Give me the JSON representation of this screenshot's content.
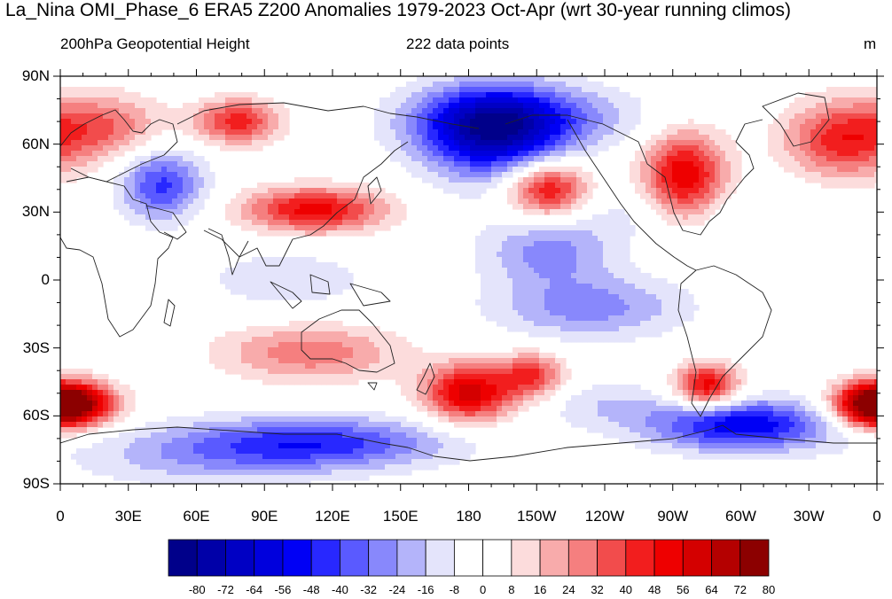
{
  "title": "La_Nina OMI_Phase_6 ERA5 Z200 Anomalies 1979-2023 Oct-Apr (wrt 30-year running climos)",
  "subtitle_left": "200hPa Geopotential Height",
  "subtitle_center": "222 data points",
  "units": "m",
  "lat_ticks": [
    {
      "label": "90N",
      "lat": 90
    },
    {
      "label": "60N",
      "lat": 60
    },
    {
      "label": "30N",
      "lat": 30
    },
    {
      "label": "0",
      "lat": 0
    },
    {
      "label": "30S",
      "lat": -30
    },
    {
      "label": "60S",
      "lat": -60
    },
    {
      "label": "90S",
      "lat": -90
    }
  ],
  "lon_ticks": [
    {
      "label": "0",
      "lon": 0
    },
    {
      "label": "30E",
      "lon": 30
    },
    {
      "label": "60E",
      "lon": 60
    },
    {
      "label": "90E",
      "lon": 90
    },
    {
      "label": "120E",
      "lon": 120
    },
    {
      "label": "150E",
      "lon": 150
    },
    {
      "label": "180",
      "lon": 180
    },
    {
      "label": "150W",
      "lon": 210
    },
    {
      "label": "120W",
      "lon": 240
    },
    {
      "label": "90W",
      "lon": 270
    },
    {
      "label": "60W",
      "lon": 300
    },
    {
      "label": "30W",
      "lon": 330
    },
    {
      "label": "0",
      "lon": 360
    }
  ],
  "colorbar": {
    "levels": [
      "-80",
      "-72",
      "-64",
      "-56",
      "-48",
      "-40",
      "-32",
      "-24",
      "-16",
      "-8",
      "0",
      "8",
      "16",
      "24",
      "32",
      "40",
      "48",
      "56",
      "64",
      "72",
      "80"
    ],
    "colors": [
      "#00008a",
      "#0000a8",
      "#0000c4",
      "#0000dd",
      "#0000f5",
      "#2828ff",
      "#5a5aff",
      "#8888fc",
      "#b4b4fa",
      "#e4e4fb",
      "#ffffff",
      "#ffffff",
      "#fcdcdc",
      "#f8abab",
      "#f57f7f",
      "#f24c4c",
      "#f21e1e",
      "#ee0000",
      "#d40000",
      "#b40000",
      "#8c0000"
    ]
  },
  "anomaly_centers": [
    {
      "lon": 190,
      "lat": 65,
      "amp": -66,
      "sx": 22,
      "sy": 14
    },
    {
      "lon": 205,
      "lat": 72,
      "amp": -30,
      "sx": 35,
      "sy": 10
    },
    {
      "lon": 215,
      "lat": 40,
      "amp": 55,
      "sx": 13,
      "sy": 9
    },
    {
      "lon": 275,
      "lat": 45,
      "amp": 58,
      "sx": 13,
      "sy": 14
    },
    {
      "lon": 345,
      "lat": 62,
      "amp": 44,
      "sx": 18,
      "sy": 12
    },
    {
      "lon": 20,
      "lat": 68,
      "amp": 30,
      "sx": 18,
      "sy": 10
    },
    {
      "lon": 78,
      "lat": 70,
      "amp": 44,
      "sx": 13,
      "sy": 7
    },
    {
      "lon": 45,
      "lat": 42,
      "amp": -42,
      "sx": 13,
      "sy": 11
    },
    {
      "lon": 112,
      "lat": 31,
      "amp": 52,
      "sx": 22,
      "sy": 7
    },
    {
      "lon": 260,
      "lat": 30,
      "amp": -12,
      "sx": 45,
      "sy": 10
    },
    {
      "lon": 215,
      "lat": 12,
      "amp": -26,
      "sx": 20,
      "sy": 10
    },
    {
      "lon": 233,
      "lat": -12,
      "amp": -28,
      "sx": 30,
      "sy": 10
    },
    {
      "lon": 100,
      "lat": 0,
      "amp": -14,
      "sx": 28,
      "sy": 10
    },
    {
      "lon": 110,
      "lat": -32,
      "amp": 30,
      "sx": 28,
      "sy": 9
    },
    {
      "lon": 180,
      "lat": -50,
      "amp": 60,
      "sx": 14,
      "sy": 9
    },
    {
      "lon": 208,
      "lat": -42,
      "amp": 40,
      "sx": 10,
      "sy": 7
    },
    {
      "lon": 285,
      "lat": -47,
      "amp": 55,
      "sx": 10,
      "sy": 7
    },
    {
      "lon": 5,
      "lat": -55,
      "amp": 62,
      "sx": 14,
      "sy": 7
    },
    {
      "lon": 358,
      "lat": -55,
      "amp": 55,
      "sx": 12,
      "sy": 7
    },
    {
      "lon": 115,
      "lat": -72,
      "amp": -42,
      "sx": 40,
      "sy": 8
    },
    {
      "lon": 300,
      "lat": -64,
      "amp": -56,
      "sx": 28,
      "sy": 8
    },
    {
      "lon": 240,
      "lat": -55,
      "amp": -14,
      "sx": 20,
      "sy": 8
    },
    {
      "lon": 60,
      "lat": -78,
      "amp": -18,
      "sx": 40,
      "sy": 10
    }
  ]
}
